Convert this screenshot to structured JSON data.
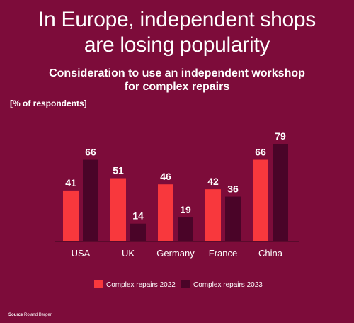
{
  "title_line1": "In Europe, independent shops",
  "title_line2": "are losing popularity",
  "subtitle_line1": "Consideration to use an independent workshop",
  "subtitle_line2": "for complex repairs",
  "unit_label": "[% of respondents]",
  "source_label": "Source",
  "source_text": "Roland Berger",
  "colors": {
    "background": "#7d0c3a",
    "series_2022": "#f8383d",
    "series_2023": "#4a0428"
  },
  "chart_data": {
    "type": "bar",
    "categories": [
      "USA",
      "UK",
      "Germany",
      "France",
      "China"
    ],
    "series": [
      {
        "name": "Complex repairs 2022",
        "values": [
          41,
          51,
          46,
          42,
          66
        ]
      },
      {
        "name": "Complex repairs 2023",
        "values": [
          66,
          14,
          19,
          36,
          79
        ]
      }
    ],
    "ylim": [
      0,
      79
    ],
    "grid": false,
    "legend_position": "bottom",
    "data_labels": true
  }
}
